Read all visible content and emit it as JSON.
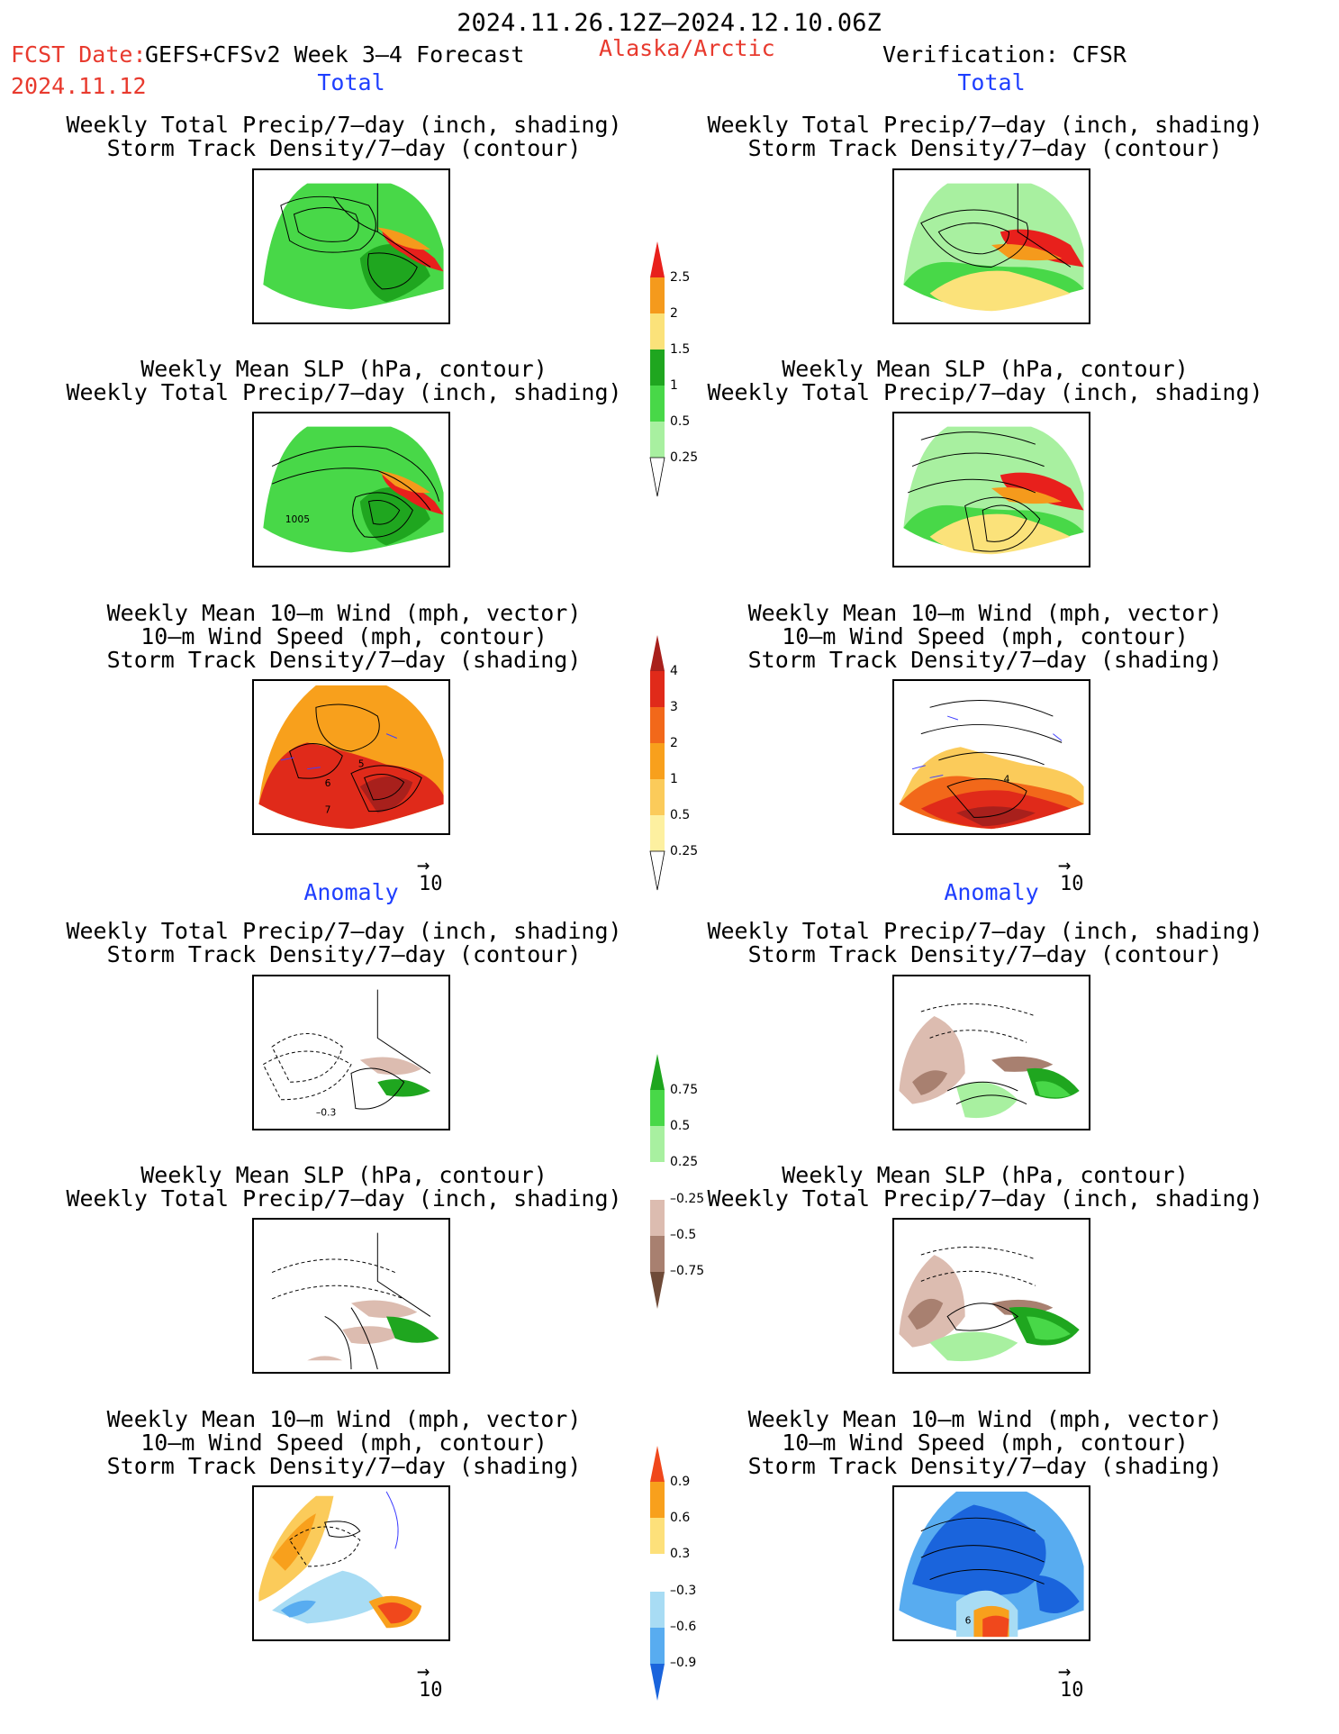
{
  "header": {
    "date_range": "2024.11.26.12Z–2024.12.10.06Z",
    "fcst_label": "FCST Date:",
    "fcst_model": "GEFS+CFSv2 Week 3–4 Forecast",
    "fcst_date": "2024.11.12",
    "region": "Alaska/Arctic",
    "verification": "Verification: CFSR"
  },
  "sections": {
    "total_left": "Total",
    "total_right": "Total",
    "anomaly_left": "Anomaly",
    "anomaly_right": "Anomaly"
  },
  "titles": {
    "precip_storm": [
      "Weekly Total Precip/7–day (inch, shading)",
      "Storm Track Density/7–day (contour)"
    ],
    "slp_precip": [
      "Weekly Mean SLP (hPa, contour)",
      "Weekly Total Precip/7–day (inch, shading)"
    ],
    "wind_storm": [
      "Weekly Mean 10–m Wind (mph, vector)",
      "10–m Wind Speed (mph, contour)",
      "Storm Track Density/7–day (shading)"
    ]
  },
  "vector_scale": "10",
  "contour_labels": {
    "slp_total_left": "1005",
    "wind_total_left_a": "6",
    "wind_total_left_b": "7",
    "wind_total_left_c": "5",
    "wind_total_right": "4",
    "precip_anom_left": "–0.3",
    "wind_anom_right": "6"
  },
  "colorbars": {
    "precip_total": {
      "labels": [
        "2.5",
        "2",
        "1.5",
        "1",
        "0.5",
        "0.25"
      ],
      "colors": [
        "#e8201c",
        "#f59a1c",
        "#fbe27a",
        "#1fa61f",
        "#48d848",
        "#a8f0a0"
      ]
    },
    "storm_total": {
      "labels": [
        "4",
        "3",
        "2",
        "1",
        "0.5",
        "0.25"
      ],
      "colors": [
        "#a8201c",
        "#e02a1a",
        "#f2681a",
        "#f8a01c",
        "#fbcb5a",
        "#fdf0a0"
      ]
    },
    "precip_anom": {
      "labels": [
        "0.75",
        "0.5",
        "0.25",
        "–0.25",
        "–0.5",
        "–0.75"
      ],
      "colors": [
        "#1fa61f",
        "#48d848",
        "#a8f0a0",
        "#ffffff",
        "#dcbcb0",
        "#a88070",
        "#6e4a38"
      ]
    },
    "storm_anom": {
      "labels": [
        "0.9",
        "0.6",
        "0.3",
        "–0.3",
        "–0.6",
        "–0.9"
      ],
      "colors": [
        "#f0481c",
        "#f8a01c",
        "#fde07a",
        "#ffffff",
        "#a8dcf4",
        "#58acf0",
        "#1a64dc"
      ]
    }
  }
}
